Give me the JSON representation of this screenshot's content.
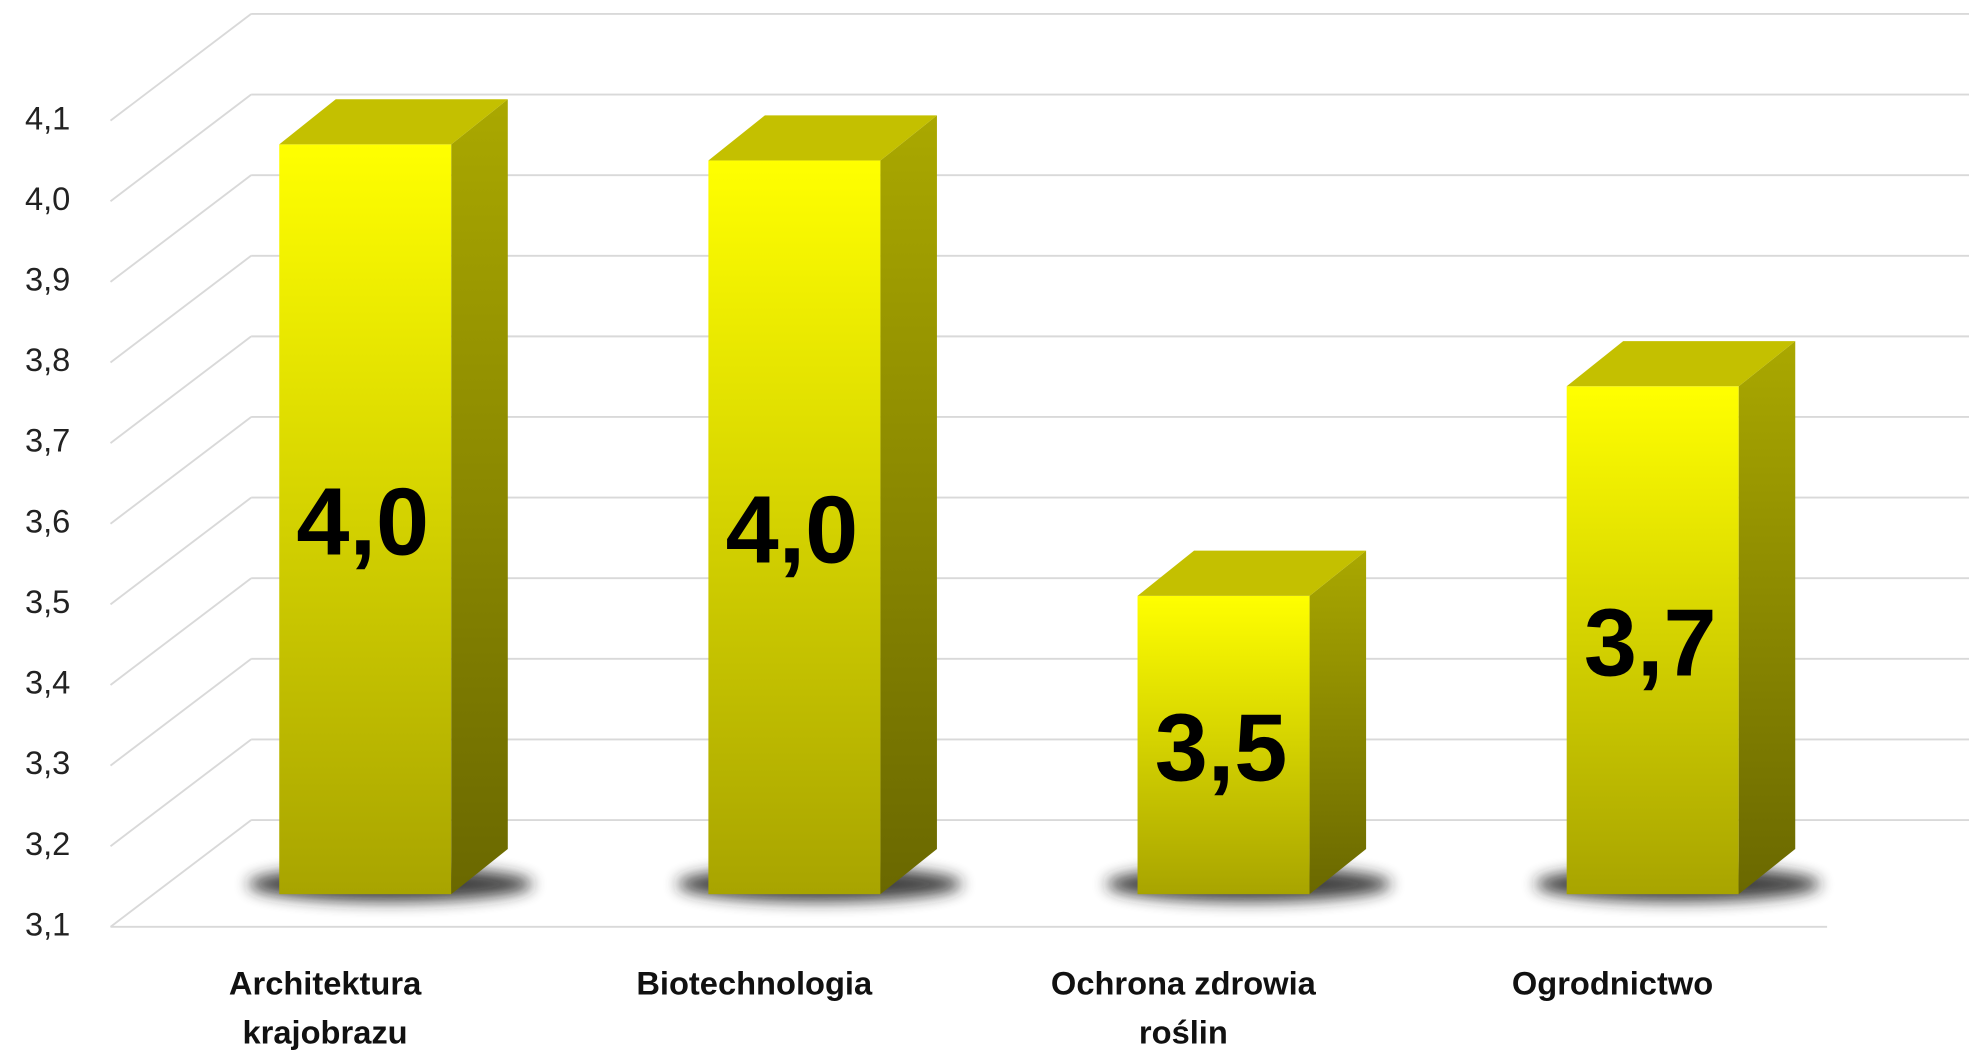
{
  "chart_data": {
    "type": "bar3d",
    "categories": [
      "Architektura krajobrazu",
      "Biotechnologia",
      "Ochrona zdrowia roślin",
      "Ogrodnictwo"
    ],
    "values": [
      4.03,
      4.01,
      3.47,
      3.73
    ],
    "value_labels": [
      "4,0",
      "4,0",
      "3,5",
      "3,7"
    ],
    "color": "#ffff00",
    "ylim": [
      3.1,
      4.1
    ],
    "yticks": [
      {
        "value": 3.1,
        "label": "3,1"
      },
      {
        "value": 3.2,
        "label": "3,2"
      },
      {
        "value": 3.3,
        "label": "3,3"
      },
      {
        "value": 3.4,
        "label": "3,4"
      },
      {
        "value": 3.5,
        "label": "3,5"
      },
      {
        "value": 3.6,
        "label": "3,6"
      },
      {
        "value": 3.7,
        "label": "3,7"
      },
      {
        "value": 3.8,
        "label": "3,8"
      },
      {
        "value": 3.9,
        "label": "3,9"
      },
      {
        "value": 4.0,
        "label": "4,0"
      },
      {
        "value": 4.1,
        "label": "4,1"
      }
    ],
    "grid": true
  }
}
